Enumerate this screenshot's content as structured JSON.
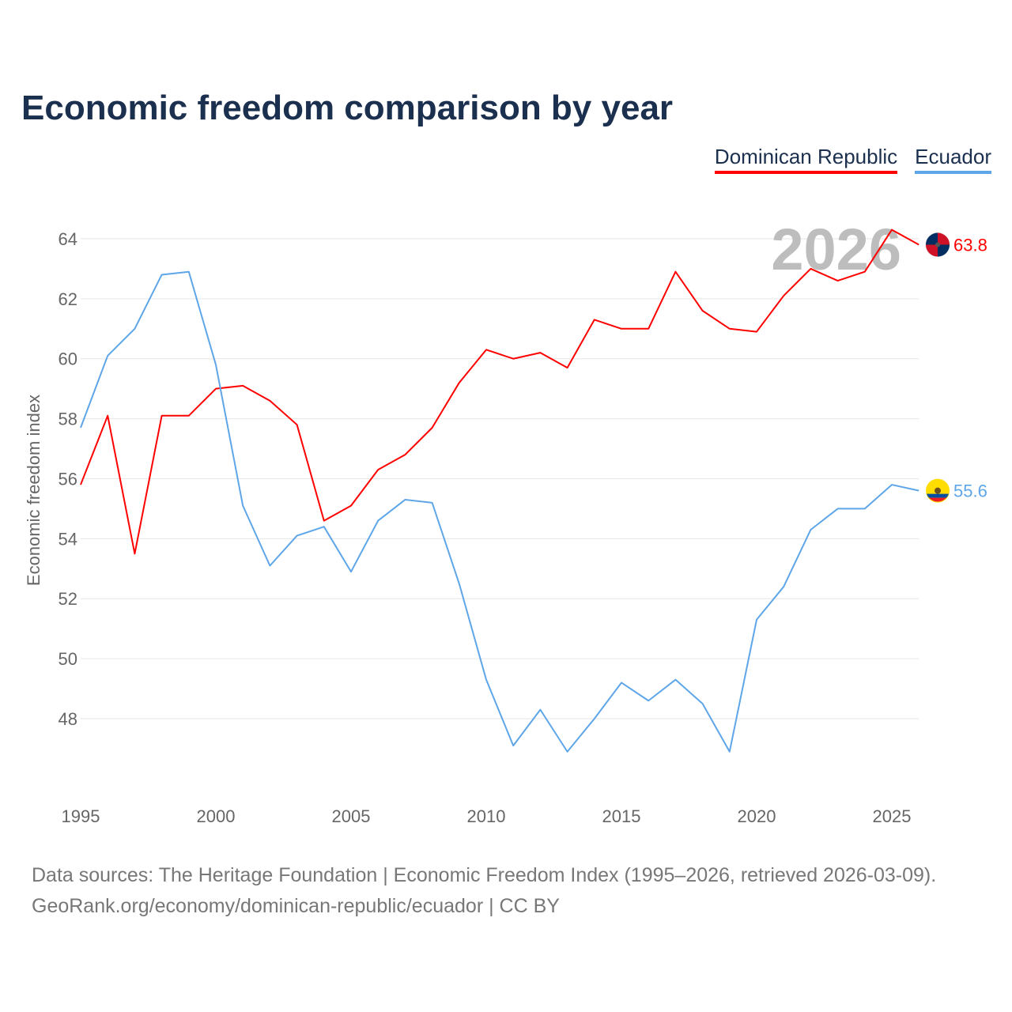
{
  "title": "Economic freedom comparison by year",
  "source_line1": "Data sources: The Heritage Foundation | Economic Freedom Index (1995–2026, retrieved 2026-03-09).",
  "source_line2": "GeoRank.org/economy/dominican-republic/ecuador | CC BY",
  "chart_data": {
    "type": "line",
    "title": "Economic freedom comparison by year",
    "ylabel": "Economic freedom index",
    "xlabel": "",
    "year_watermark": "2026",
    "xlim": [
      1995,
      2026
    ],
    "ylim": [
      46,
      65
    ],
    "xticks": [
      1995,
      2000,
      2005,
      2010,
      2015,
      2020,
      2025
    ],
    "yticks": [
      48,
      50,
      52,
      54,
      56,
      58,
      60,
      62,
      64
    ],
    "legend_position": "top-right",
    "x": [
      1995,
      1996,
      1997,
      1998,
      1999,
      2000,
      2001,
      2002,
      2003,
      2004,
      2005,
      2006,
      2007,
      2008,
      2009,
      2010,
      2011,
      2012,
      2013,
      2014,
      2015,
      2016,
      2017,
      2018,
      2019,
      2020,
      2021,
      2022,
      2023,
      2024,
      2025,
      2026
    ],
    "series": [
      {
        "name": "Dominican Republic",
        "color": "#ff0000",
        "end_label": "63.8",
        "values": [
          55.8,
          58.1,
          53.5,
          58.1,
          58.1,
          59.0,
          59.1,
          58.6,
          57.8,
          54.6,
          55.1,
          56.3,
          56.8,
          57.7,
          59.2,
          60.3,
          60.0,
          60.2,
          59.7,
          61.3,
          61.0,
          61.0,
          62.9,
          61.6,
          61.0,
          60.9,
          62.1,
          63.0,
          62.6,
          62.9,
          64.3,
          63.8
        ]
      },
      {
        "name": "Ecuador",
        "color": "#5ea6e8",
        "end_label": "55.6",
        "values": [
          57.7,
          60.1,
          61.0,
          62.8,
          62.9,
          59.8,
          55.1,
          53.1,
          54.1,
          54.4,
          52.9,
          54.6,
          55.3,
          55.2,
          52.5,
          49.3,
          47.1,
          48.3,
          46.9,
          48.0,
          49.2,
          48.6,
          49.3,
          48.5,
          46.9,
          51.3,
          52.4,
          54.3,
          55.0,
          55.0,
          55.8,
          55.6
        ]
      }
    ]
  }
}
